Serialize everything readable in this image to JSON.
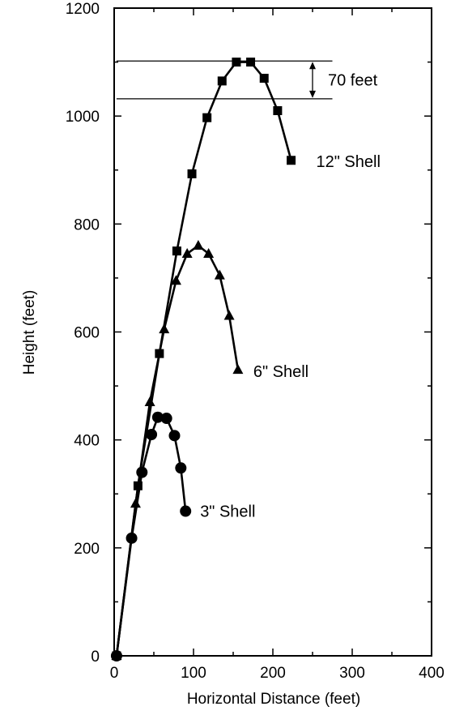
{
  "chart_data": {
    "type": "line",
    "title": "",
    "xlabel": "Horizontal Distance (feet)",
    "ylabel": "Height (feet)",
    "xlim": [
      0,
      400
    ],
    "ylim": [
      0,
      1200
    ],
    "xticks": [
      0,
      100,
      200,
      300,
      400
    ],
    "yticks": [
      0,
      200,
      400,
      600,
      800,
      1000,
      1200
    ],
    "grid": false,
    "legend": "none",
    "series": [
      {
        "name": "3\" Shell",
        "marker": "circle",
        "x": [
          3,
          22,
          35,
          47,
          55,
          66,
          76,
          84,
          90
        ],
        "y": [
          0,
          218,
          340,
          410,
          442,
          440,
          408,
          348,
          268
        ]
      },
      {
        "name": "6\" Shell",
        "marker": "triangle",
        "x": [
          3,
          27,
          45,
          63,
          78,
          92,
          106,
          119,
          133,
          145,
          156
        ],
        "y": [
          0,
          282,
          470,
          605,
          695,
          745,
          760,
          745,
          705,
          630,
          530
        ]
      },
      {
        "name": "12\" Shell",
        "marker": "square",
        "x": [
          3,
          30,
          57,
          79,
          98,
          117,
          136,
          154,
          172,
          189,
          206,
          223
        ],
        "y": [
          0,
          315,
          560,
          750,
          893,
          997,
          1065,
          1100,
          1100,
          1070,
          1010,
          918
        ]
      }
    ],
    "annotations": [
      {
        "text": "70 feet",
        "type": "vertical-double-arrow",
        "upper_line_y": 1102,
        "lower_line_y": 1032,
        "x_from": 3,
        "x_to": 275,
        "arrow_x": 250
      }
    ]
  }
}
